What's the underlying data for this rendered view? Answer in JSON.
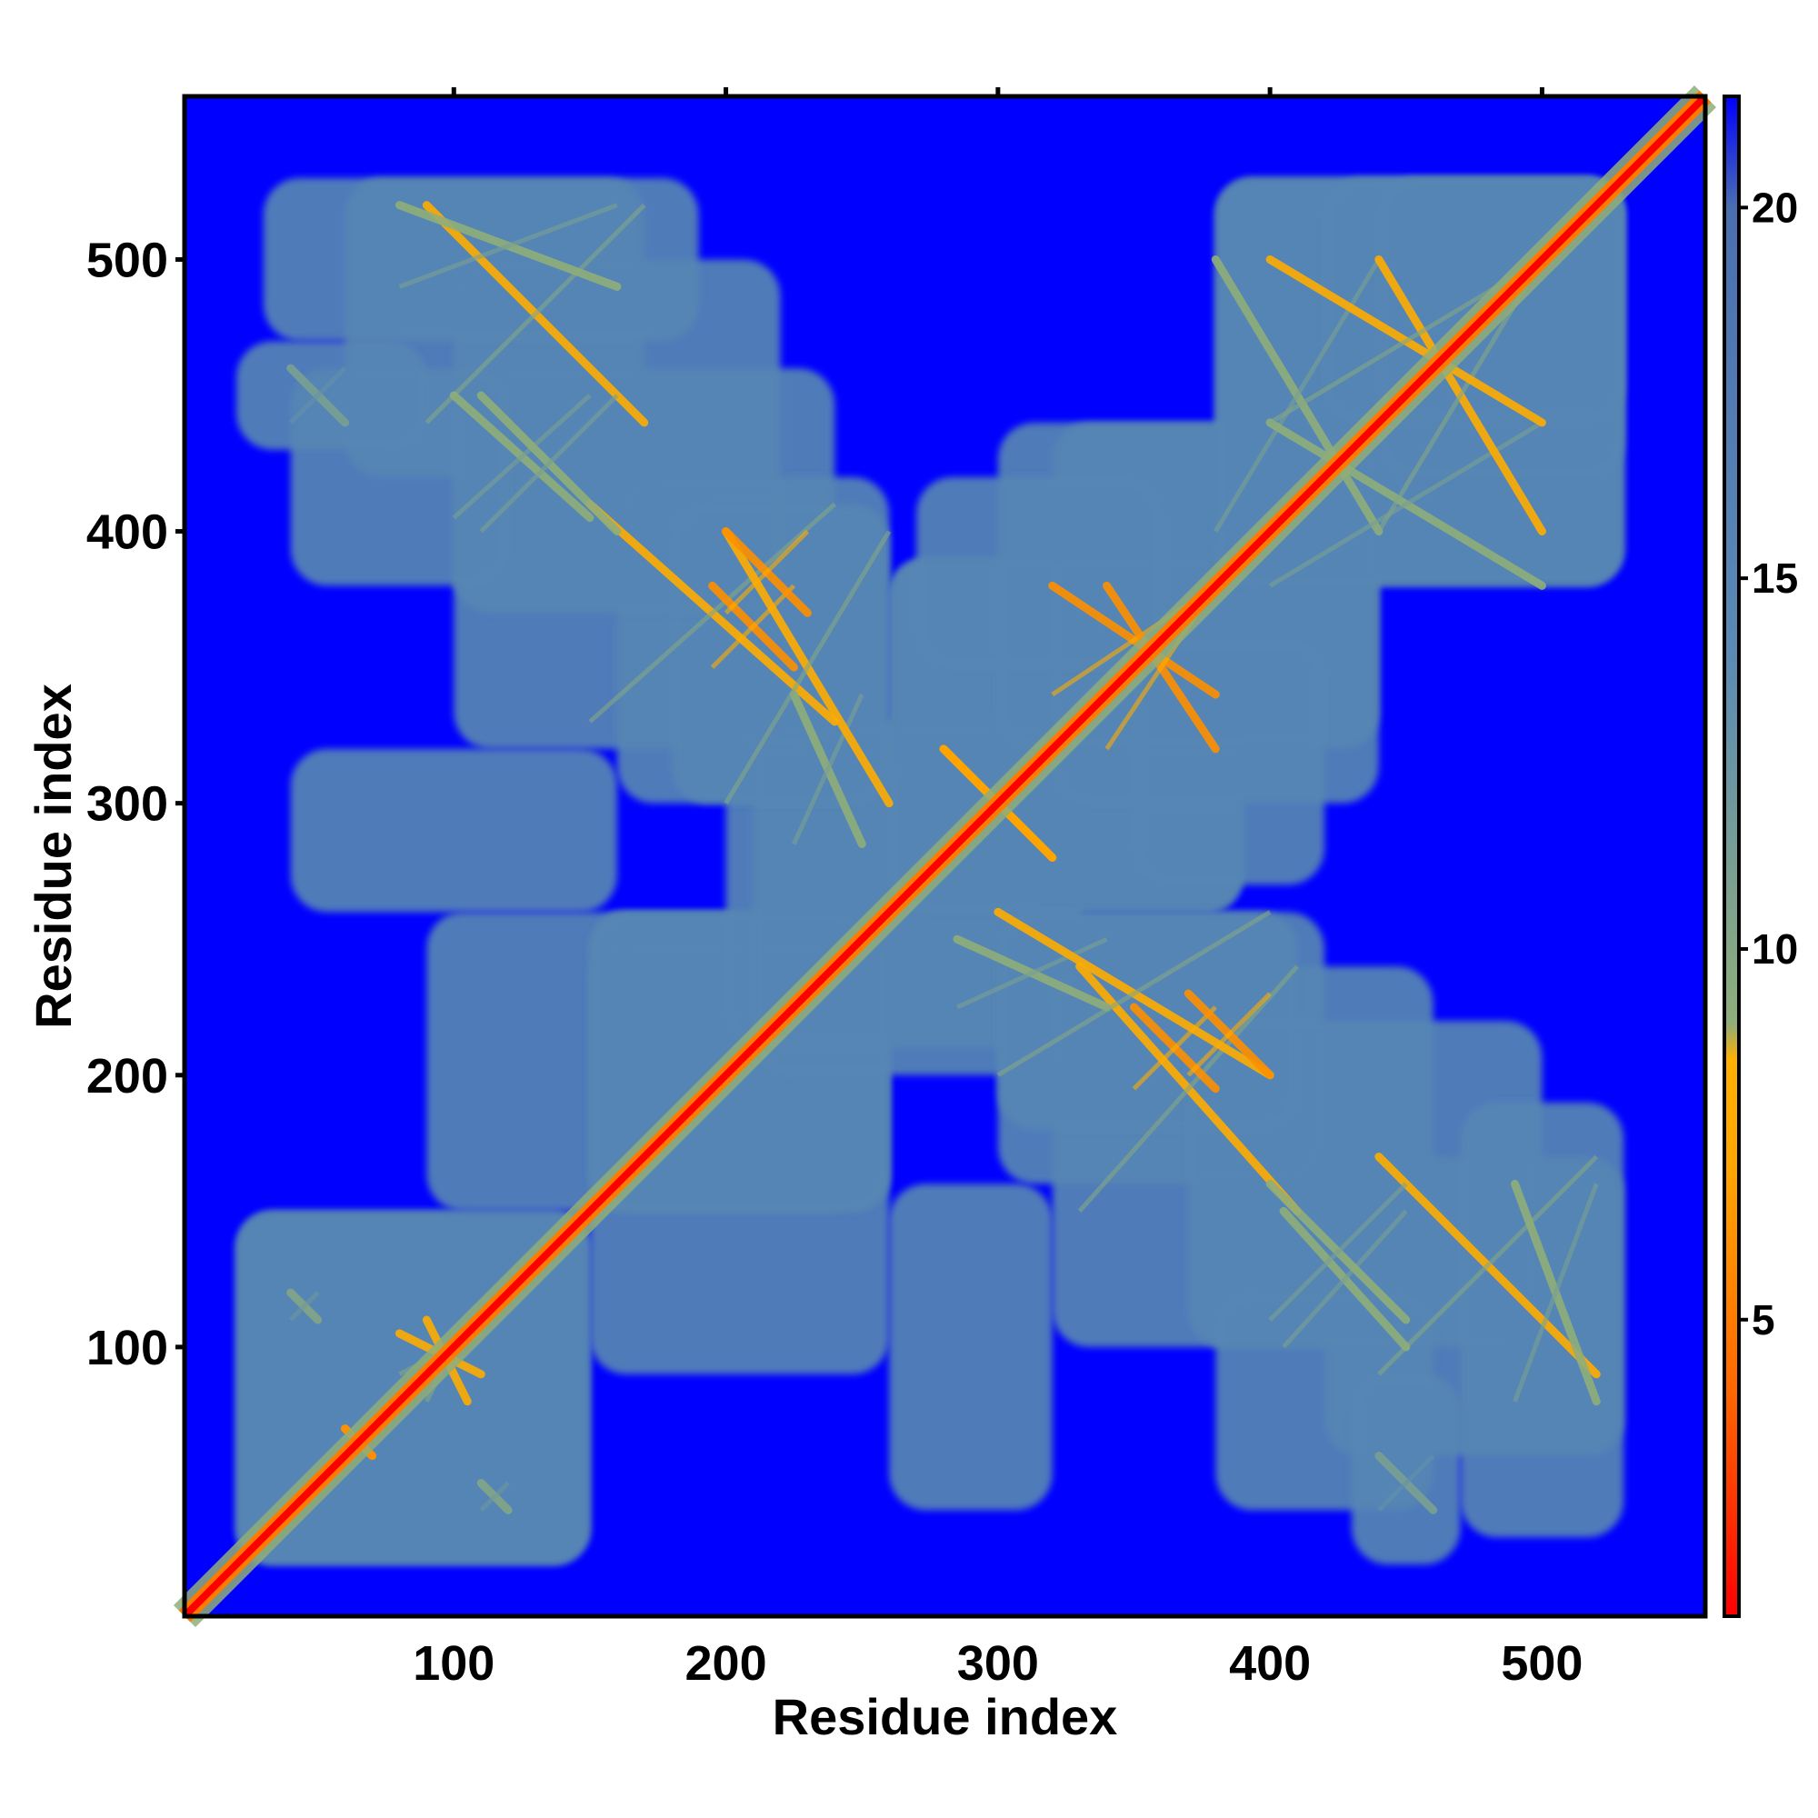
{
  "chart_data": {
    "type": "heatmap",
    "title": "",
    "xlabel": "Residue index",
    "ylabel": "Residue index",
    "xlim": [
      1,
      560
    ],
    "ylim": [
      1,
      560
    ],
    "x_ticks": [
      100,
      200,
      300,
      400,
      500
    ],
    "y_ticks": [
      100,
      200,
      300,
      400,
      500
    ],
    "colorbar": {
      "range": [
        1,
        21.5
      ],
      "ticks": [
        5,
        10,
        15,
        20
      ],
      "stops": [
        {
          "value": 1,
          "color": "#ff0000"
        },
        {
          "value": 4,
          "color": "#ff6600"
        },
        {
          "value": 7,
          "color": "#ffa500"
        },
        {
          "value": 8.5,
          "color": "#ffb000"
        },
        {
          "value": 9,
          "color": "#8fae7a"
        },
        {
          "value": 14,
          "color": "#5a8ab5"
        },
        {
          "value": 20,
          "color": "#4a6fb0"
        },
        {
          "value": 21.5,
          "color": "#0000ff"
        }
      ]
    },
    "background_value": 21.5,
    "diagonal_value": 1,
    "contact_features": [
      {
        "i": [
          60,
          70
        ],
        "j": [
          60,
          70
        ],
        "value": 6
      },
      {
        "i": [
          80,
          110
        ],
        "j": [
          90,
          105
        ],
        "value": 8
      },
      {
        "i": [
          40,
          50
        ],
        "j": [
          110,
          120
        ],
        "value": 10
      },
      {
        "i": [
          90,
          170
        ],
        "j": [
          440,
          520
        ],
        "value": 8
      },
      {
        "i": [
          100,
          150
        ],
        "j": [
          405,
          450
        ],
        "value": 9
      },
      {
        "i": [
          150,
          240
        ],
        "j": [
          330,
          410
        ],
        "value": 8
      },
      {
        "i": [
          195,
          225
        ],
        "j": [
          350,
          380
        ],
        "value": 6
      },
      {
        "i": [
          225,
          250
        ],
        "j": [
          285,
          340
        ],
        "value": 9
      },
      {
        "i": [
          280,
          320
        ],
        "j": [
          280,
          320
        ],
        "value": 7
      },
      {
        "i": [
          320,
          380
        ],
        "j": [
          340,
          380
        ],
        "value": 6
      },
      {
        "i": [
          380,
          440
        ],
        "j": [
          400,
          500
        ],
        "value": 9
      },
      {
        "i": [
          440,
          500
        ],
        "j": [
          400,
          500
        ],
        "value": 8
      },
      {
        "i": [
          300,
          400
        ],
        "j": [
          200,
          260
        ],
        "value": 8
      },
      {
        "i": [
          370,
          400
        ],
        "j": [
          200,
          230
        ],
        "value": 6
      },
      {
        "i": [
          400,
          450
        ],
        "j": [
          110,
          160
        ],
        "value": 9
      },
      {
        "i": [
          490,
          520
        ],
        "j": [
          80,
          160
        ],
        "value": 9
      },
      {
        "i": [
          440,
          460
        ],
        "j": [
          40,
          60
        ],
        "value": 11
      }
    ]
  }
}
